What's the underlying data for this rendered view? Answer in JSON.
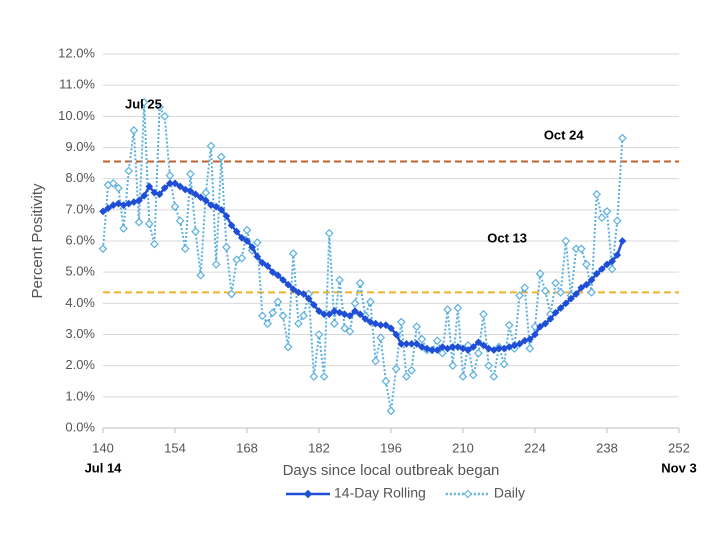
{
  "chart_data": {
    "type": "line",
    "xlabel": "Days since local outbreak began",
    "ylabel": "Percent Positivity",
    "x": [
      140,
      141,
      142,
      143,
      144,
      145,
      146,
      147,
      148,
      149,
      150,
      151,
      152,
      153,
      154,
      155,
      156,
      157,
      158,
      159,
      160,
      161,
      162,
      163,
      164,
      165,
      166,
      167,
      168,
      169,
      170,
      171,
      172,
      173,
      174,
      175,
      176,
      177,
      178,
      179,
      180,
      181,
      182,
      183,
      184,
      185,
      186,
      187,
      188,
      189,
      190,
      191,
      192,
      193,
      194,
      195,
      196,
      197,
      198,
      199,
      200,
      201,
      202,
      203,
      204,
      205,
      206,
      207,
      208,
      209,
      210,
      211,
      212,
      213,
      214,
      215,
      216,
      217,
      218,
      219,
      220,
      221,
      222,
      223,
      224,
      225,
      226,
      227,
      228,
      229,
      230,
      231,
      232,
      233,
      234,
      235,
      236,
      237,
      238,
      239,
      240,
      241
    ],
    "series": [
      {
        "name": "14-Day Rolling",
        "color": "#1f4fd6",
        "style": "solid",
        "values": [
          6.95,
          7.05,
          7.15,
          7.2,
          7.15,
          7.2,
          7.25,
          7.3,
          7.45,
          7.75,
          7.55,
          7.5,
          7.7,
          7.85,
          7.85,
          7.75,
          7.65,
          7.6,
          7.5,
          7.4,
          7.3,
          7.15,
          7.1,
          7.0,
          6.8,
          6.5,
          6.3,
          6.1,
          6.0,
          5.8,
          5.5,
          5.3,
          5.2,
          5.0,
          4.9,
          4.75,
          4.6,
          4.45,
          4.35,
          4.3,
          4.15,
          3.95,
          3.75,
          3.65,
          3.65,
          3.75,
          3.7,
          3.65,
          3.6,
          3.75,
          3.65,
          3.5,
          3.4,
          3.35,
          3.3,
          3.3,
          3.2,
          3.0,
          2.7,
          2.7,
          2.7,
          2.7,
          2.6,
          2.55,
          2.5,
          2.5,
          2.6,
          2.55,
          2.6,
          2.6,
          2.55,
          2.5,
          2.6,
          2.75,
          2.65,
          2.55,
          2.5,
          2.55,
          2.55,
          2.6,
          2.65,
          2.7,
          2.8,
          2.85,
          3.0,
          3.25,
          3.35,
          3.5,
          3.7,
          3.85,
          4.0,
          4.15,
          4.3,
          4.5,
          4.6,
          4.75,
          4.95,
          5.1,
          5.25,
          5.35,
          5.55,
          6.0
        ]
      },
      {
        "name": "Daily",
        "color": "#5bb0e0",
        "style": "dotted",
        "values": [
          5.75,
          7.8,
          7.85,
          7.7,
          6.4,
          8.25,
          9.55,
          6.6,
          10.45,
          6.55,
          5.9,
          10.3,
          10.0,
          8.1,
          7.1,
          6.65,
          5.75,
          8.15,
          6.3,
          4.9,
          7.55,
          9.05,
          5.25,
          8.7,
          5.8,
          4.3,
          5.4,
          5.45,
          6.35,
          5.7,
          5.95,
          3.6,
          3.35,
          3.7,
          4.05,
          3.6,
          2.6,
          5.6,
          3.35,
          3.6,
          4.3,
          1.65,
          3.0,
          1.65,
          6.25,
          3.35,
          4.75,
          3.2,
          3.1,
          4.0,
          4.65,
          3.6,
          4.05,
          2.15,
          2.9,
          1.5,
          0.55,
          1.9,
          3.4,
          1.65,
          1.85,
          3.25,
          2.85,
          2.5,
          2.5,
          2.8,
          2.4,
          3.8,
          2.0,
          3.85,
          1.65,
          2.65,
          1.7,
          2.4,
          3.65,
          2.0,
          1.65,
          2.6,
          2.05,
          3.3,
          2.55,
          4.25,
          4.5,
          2.55,
          3.25,
          4.95,
          4.4,
          3.65,
          4.65,
          4.35,
          6.0,
          4.25,
          5.75,
          5.75,
          5.25,
          4.35,
          7.5,
          6.75,
          6.95,
          5.1,
          6.65,
          9.3
        ]
      }
    ],
    "xlim": [
      140,
      252
    ],
    "xticks": [
      140,
      154,
      168,
      182,
      196,
      210,
      224,
      238,
      252
    ],
    "x_date_labels": [
      {
        "value": 140,
        "label": "Jul 14"
      },
      {
        "value": 252,
        "label": "Nov 3"
      }
    ],
    "ylim": [
      0,
      12
    ],
    "yticks": [
      {
        "value": 0,
        "label": "0.0%"
      },
      {
        "value": 1,
        "label": "1.0%"
      },
      {
        "value": 2,
        "label": "2.0%"
      },
      {
        "value": 3,
        "label": "3.0%"
      },
      {
        "value": 4,
        "label": "4.0%"
      },
      {
        "value": 5,
        "label": "5.0%"
      },
      {
        "value": 6,
        "label": "6.0%"
      },
      {
        "value": 7,
        "label": "7.0%"
      },
      {
        "value": 8,
        "label": "8.0%"
      },
      {
        "value": 9,
        "label": "9.0%"
      },
      {
        "value": 10,
        "label": "10.0%"
      },
      {
        "value": 11,
        "label": "11.0%"
      },
      {
        "value": 12,
        "label": "12.0%"
      }
    ],
    "grid": true,
    "reference_lines": [
      {
        "value": 8.55,
        "color": "#c0622d"
      },
      {
        "value": 4.35,
        "color": "#f0b429"
      }
    ],
    "annotations": [
      {
        "text": "Jul 25",
        "x": 153,
        "y": 10.3
      },
      {
        "text": "Oct 13",
        "x": 224,
        "y": 6.0
      },
      {
        "text": "Oct 24",
        "x": 235,
        "y": 9.3
      }
    ],
    "legend": "bottom"
  }
}
